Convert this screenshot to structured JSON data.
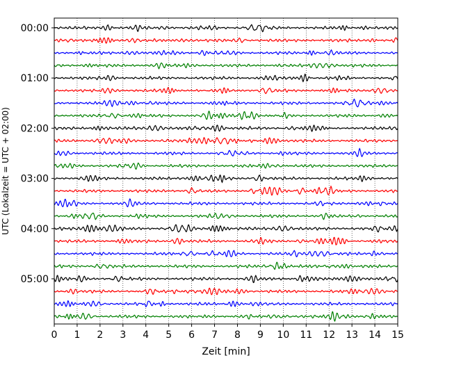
{
  "chart_data": {
    "type": "line",
    "title": "",
    "xlabel": "Zeit  [min]",
    "ylabel": "UTC (Lokalzeit = UTC + 02:00)",
    "xlim": [
      0,
      15
    ],
    "x_ticks": [
      0,
      1,
      2,
      3,
      4,
      5,
      6,
      7,
      8,
      9,
      10,
      11,
      12,
      13,
      14,
      15
    ],
    "row_interval_minutes": 15,
    "row_count": 24,
    "row_colors": [
      "#000000",
      "#ff0000",
      "#0000ff",
      "#008000"
    ],
    "y_ticks": [
      {
        "row": 0,
        "label": "00:00"
      },
      {
        "row": 4,
        "label": "01:00"
      },
      {
        "row": 8,
        "label": "02:00"
      },
      {
        "row": 12,
        "label": "03:00"
      },
      {
        "row": 16,
        "label": "04:00"
      },
      {
        "row": 20,
        "label": "05:00"
      }
    ],
    "grid": "vertical dotted"
  }
}
